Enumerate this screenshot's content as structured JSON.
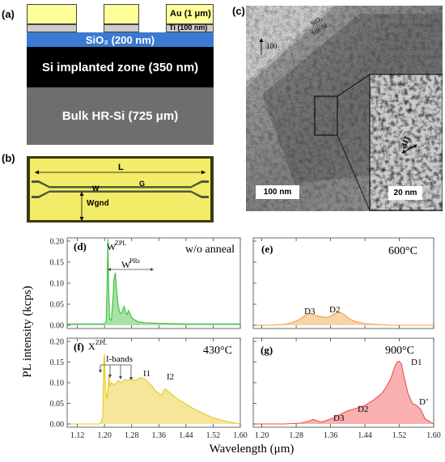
{
  "panel_a": {
    "label": "(a)",
    "au": "Au (1 μm)",
    "ti": "Ti (100 nm)",
    "sio2": "SiO₂ (200 nm)",
    "implanted": "Si implanted zone (350 nm)",
    "bulk": "Bulk HR-Si (725 μm)"
  },
  "panel_b": {
    "label": "(b)",
    "L": "L",
    "W": "W",
    "G": "G",
    "Wgnd": "Wgnd"
  },
  "panel_c": {
    "label": "(c)",
    "direction": "100",
    "sio2": "SiO₂",
    "hrsi": "HR-Si",
    "scale_main": "100 nm",
    "scale_inset": "20 nm",
    "defect": "311"
  },
  "colors": {
    "d": "#3cbe3c",
    "e": "#f0a040",
    "f": "#e8c81e",
    "g": "#f05050"
  },
  "axes": {
    "ylabel": "PL intensity (kcps)",
    "xlabel": "Wavelength (μm)",
    "xticks": [
      "1.12",
      "1.20",
      "1.28",
      "1.36",
      "1.44",
      "1.52",
      "1.60"
    ],
    "xticks_right": [
      "1.20",
      "1.28",
      "1.36",
      "1.44",
      "1.52",
      "1.60"
    ],
    "yticks_top": [
      "0.20",
      "0.15",
      "0.10",
      "0.05",
      "0.00"
    ],
    "yticks_bottom": [
      "0.20",
      "0.15",
      "0.10",
      "0.05",
      "0.00"
    ]
  },
  "chart_data": [
    {
      "panel": "(d)",
      "type": "area",
      "annotation": "w/o anneal",
      "labels": [
        "W",
        "ZPL",
        "W",
        "PRs"
      ],
      "xlim": [
        1.09,
        1.6
      ],
      "ylim": [
        0,
        0.2
      ],
      "x": [
        1.09,
        1.19,
        1.2,
        1.205,
        1.208,
        1.21,
        1.212,
        1.215,
        1.22,
        1.225,
        1.228,
        1.232,
        1.235,
        1.24,
        1.245,
        1.25,
        1.255,
        1.258,
        1.262,
        1.266,
        1.27,
        1.275,
        1.28,
        1.29,
        1.3,
        1.32,
        1.35,
        1.4,
        1.45,
        1.5,
        1.55,
        1.6
      ],
      "y": [
        0.003,
        0.003,
        0.004,
        0.008,
        0.11,
        0.205,
        0.1,
        0.015,
        0.012,
        0.06,
        0.11,
        0.125,
        0.09,
        0.05,
        0.03,
        0.028,
        0.04,
        0.045,
        0.03,
        0.025,
        0.035,
        0.028,
        0.018,
        0.012,
        0.008,
        0.006,
        0.005,
        0.004,
        0.003,
        0.003,
        0.003,
        0.003
      ]
    },
    {
      "panel": "(e)",
      "type": "area",
      "annotation": "600°C",
      "labels": [
        "D3",
        "D2"
      ],
      "xlim": [
        1.18,
        1.6
      ],
      "ylim": [
        0,
        0.2
      ],
      "x": [
        1.18,
        1.22,
        1.25,
        1.27,
        1.29,
        1.3,
        1.31,
        1.32,
        1.33,
        1.34,
        1.35,
        1.36,
        1.37,
        1.38,
        1.39,
        1.4,
        1.41,
        1.42,
        1.44,
        1.47,
        1.5,
        1.55,
        1.6
      ],
      "y": [
        0.0,
        0.0,
        0.002,
        0.006,
        0.015,
        0.023,
        0.028,
        0.026,
        0.022,
        0.02,
        0.018,
        0.022,
        0.028,
        0.031,
        0.027,
        0.018,
        0.012,
        0.008,
        0.004,
        0.002,
        0.0,
        0.0,
        0.0
      ]
    },
    {
      "panel": "(f)",
      "type": "area",
      "annotation": "430°C",
      "labels": [
        "X",
        "ZPL",
        "I-bands",
        "I1",
        "I2"
      ],
      "xlim": [
        1.09,
        1.6
      ],
      "ylim": [
        0,
        0.2
      ],
      "x": [
        1.09,
        1.185,
        1.19,
        1.195,
        1.198,
        1.2,
        1.203,
        1.207,
        1.21,
        1.213,
        1.216,
        1.22,
        1.23,
        1.24,
        1.25,
        1.26,
        1.27,
        1.28,
        1.29,
        1.3,
        1.31,
        1.32,
        1.33,
        1.34,
        1.35,
        1.36,
        1.37,
        1.375,
        1.38,
        1.385,
        1.39,
        1.4,
        1.42,
        1.44,
        1.46,
        1.48,
        1.5,
        1.52,
        1.55,
        1.58,
        1.6
      ],
      "y": [
        0.0,
        0.0,
        0.003,
        0.02,
        0.15,
        0.17,
        0.08,
        0.06,
        0.085,
        0.12,
        0.09,
        0.1,
        0.095,
        0.105,
        0.1,
        0.108,
        0.105,
        0.11,
        0.105,
        0.11,
        0.112,
        0.108,
        0.1,
        0.092,
        0.08,
        0.074,
        0.07,
        0.082,
        0.085,
        0.08,
        0.078,
        0.07,
        0.058,
        0.048,
        0.038,
        0.03,
        0.022,
        0.015,
        0.008,
        0.003,
        0.0
      ]
    },
    {
      "panel": "(g)",
      "type": "area",
      "annotation": "900°C",
      "labels": [
        "D3",
        "D2",
        "D1",
        "D’"
      ],
      "xlim": [
        1.18,
        1.6
      ],
      "ylim": [
        0,
        0.2
      ],
      "x": [
        1.18,
        1.25,
        1.29,
        1.31,
        1.32,
        1.33,
        1.34,
        1.36,
        1.38,
        1.4,
        1.42,
        1.44,
        1.46,
        1.48,
        1.49,
        1.5,
        1.505,
        1.51,
        1.515,
        1.52,
        1.525,
        1.53,
        1.54,
        1.55,
        1.56,
        1.57,
        1.58,
        1.6
      ],
      "y": [
        0.0,
        0.0,
        0.002,
        0.007,
        0.011,
        0.007,
        0.005,
        0.012,
        0.022,
        0.032,
        0.038,
        0.045,
        0.058,
        0.075,
        0.09,
        0.11,
        0.125,
        0.14,
        0.15,
        0.152,
        0.145,
        0.12,
        0.075,
        0.05,
        0.045,
        0.035,
        0.012,
        0.0
      ]
    }
  ]
}
